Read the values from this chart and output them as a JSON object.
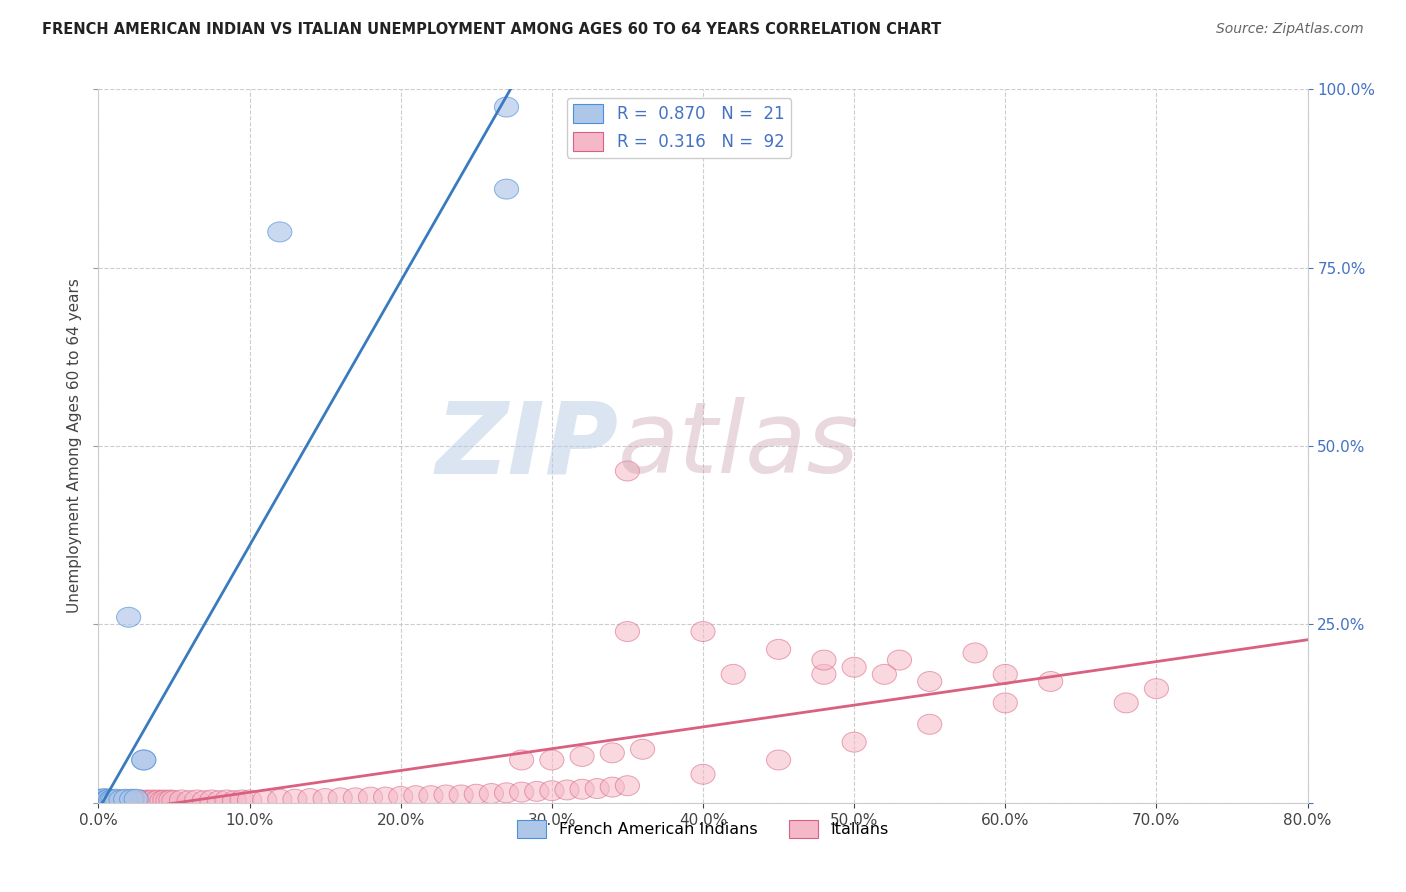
{
  "title": "FRENCH AMERICAN INDIAN VS ITALIAN UNEMPLOYMENT AMONG AGES 60 TO 64 YEARS CORRELATION CHART",
  "source": "Source: ZipAtlas.com",
  "ylabel_label": "Unemployment Among Ages 60 to 64 years",
  "watermark_zip": "ZIP",
  "watermark_atlas": "atlas",
  "legend_label1": "French American Indians",
  "legend_label2": "Italians",
  "r1": 0.87,
  "n1": 21,
  "r2": 0.316,
  "n2": 92,
  "color_blue_fill": "#aec6e8",
  "color_blue_edge": "#4a90d9",
  "color_blue_line": "#3a7abf",
  "color_pink_fill": "#f5b8c8",
  "color_pink_edge": "#d96080",
  "color_pink_line": "#d96080",
  "color_tick_blue": "#4472c4",
  "xlim": [
    0,
    0.8
  ],
  "ylim": [
    0,
    1.0
  ],
  "blue_scatter_x": [
    0.001,
    0.002,
    0.003,
    0.004,
    0.005,
    0.006,
    0.007,
    0.008,
    0.009,
    0.01,
    0.012,
    0.015,
    0.018,
    0.02,
    0.022,
    0.025,
    0.03,
    0.03,
    0.27,
    0.27,
    0.12
  ],
  "blue_scatter_y": [
    0.005,
    0.003,
    0.004,
    0.006,
    0.003,
    0.004,
    0.005,
    0.003,
    0.004,
    0.003,
    0.005,
    0.004,
    0.005,
    0.26,
    0.005,
    0.005,
    0.06,
    0.06,
    0.975,
    0.86,
    0.8
  ],
  "pink_scatter_x": [
    0.001,
    0.002,
    0.003,
    0.004,
    0.005,
    0.006,
    0.007,
    0.008,
    0.009,
    0.01,
    0.012,
    0.014,
    0.016,
    0.018,
    0.02,
    0.022,
    0.024,
    0.026,
    0.028,
    0.03,
    0.032,
    0.034,
    0.036,
    0.038,
    0.04,
    0.042,
    0.044,
    0.046,
    0.048,
    0.05,
    0.055,
    0.06,
    0.065,
    0.07,
    0.075,
    0.08,
    0.085,
    0.09,
    0.095,
    0.1,
    0.11,
    0.12,
    0.13,
    0.14,
    0.15,
    0.16,
    0.17,
    0.18,
    0.19,
    0.2,
    0.21,
    0.22,
    0.23,
    0.24,
    0.25,
    0.26,
    0.27,
    0.28,
    0.29,
    0.3,
    0.31,
    0.32,
    0.33,
    0.34,
    0.35,
    0.4,
    0.45,
    0.5,
    0.55,
    0.6,
    0.35,
    0.42,
    0.48,
    0.53,
    0.58,
    0.63,
    0.68,
    0.7,
    0.35,
    0.4,
    0.45,
    0.48,
    0.5,
    0.52,
    0.55,
    0.6,
    0.28,
    0.3,
    0.32,
    0.34,
    0.36
  ],
  "pink_scatter_y": [
    0.004,
    0.003,
    0.004,
    0.003,
    0.004,
    0.003,
    0.004,
    0.003,
    0.004,
    0.003,
    0.004,
    0.003,
    0.004,
    0.003,
    0.004,
    0.003,
    0.004,
    0.003,
    0.004,
    0.003,
    0.004,
    0.003,
    0.004,
    0.003,
    0.004,
    0.003,
    0.004,
    0.003,
    0.004,
    0.003,
    0.004,
    0.003,
    0.004,
    0.003,
    0.004,
    0.003,
    0.004,
    0.003,
    0.004,
    0.004,
    0.004,
    0.005,
    0.005,
    0.006,
    0.006,
    0.007,
    0.007,
    0.008,
    0.008,
    0.009,
    0.01,
    0.01,
    0.011,
    0.011,
    0.012,
    0.013,
    0.014,
    0.015,
    0.016,
    0.017,
    0.018,
    0.019,
    0.02,
    0.022,
    0.024,
    0.04,
    0.06,
    0.085,
    0.11,
    0.14,
    0.24,
    0.18,
    0.18,
    0.2,
    0.21,
    0.17,
    0.14,
    0.16,
    0.465,
    0.24,
    0.215,
    0.2,
    0.19,
    0.18,
    0.17,
    0.18,
    0.06,
    0.06,
    0.065,
    0.07,
    0.075
  ]
}
